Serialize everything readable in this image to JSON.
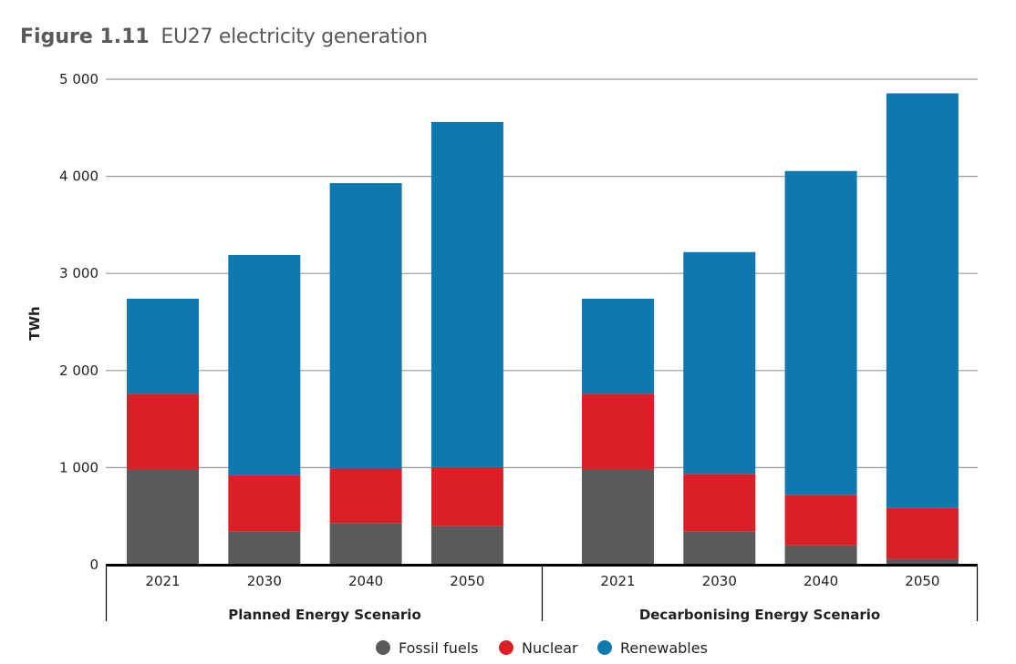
{
  "figure": {
    "number": "Figure 1.11",
    "title": "EU27 electricity generation"
  },
  "colors": {
    "fossil": "#5a5a5c",
    "nuclear": "#da1f26",
    "renewables": "#0e78b1",
    "grid": "#999999",
    "axis": "#000000"
  },
  "chart_data": {
    "type": "bar",
    "stacked": true,
    "title": "EU27 electricity generation",
    "xlabel": "",
    "ylabel": "TWh",
    "ylim": [
      0,
      5000
    ],
    "yticks": [
      0,
      1000,
      2000,
      3000,
      4000,
      5000
    ],
    "ytick_labels": [
      "0",
      "1 000",
      "2 000",
      "3 000",
      "4 000",
      "5 000"
    ],
    "grid": true,
    "legend_position": "bottom-center",
    "groups": [
      {
        "name": "Planned Energy Scenario",
        "categories": [
          "2021",
          "2030",
          "2040",
          "2050"
        ]
      },
      {
        "name": "Decarbonising Energy Scenario",
        "categories": [
          "2021",
          "2030",
          "2040",
          "2050"
        ]
      }
    ],
    "series": [
      {
        "name": "Fossil fuels",
        "color": "#5a5a5c",
        "values": [
          [
            980,
            340,
            430,
            400
          ],
          [
            980,
            340,
            200,
            60
          ]
        ]
      },
      {
        "name": "Nuclear",
        "color": "#da1f26",
        "values": [
          [
            780,
            580,
            560,
            605
          ],
          [
            780,
            595,
            520,
            525
          ]
        ]
      },
      {
        "name": "Renewables",
        "color": "#0e78b1",
        "values": [
          [
            980,
            2270,
            2940,
            3555
          ],
          [
            980,
            2285,
            3335,
            4270
          ]
        ]
      }
    ]
  }
}
